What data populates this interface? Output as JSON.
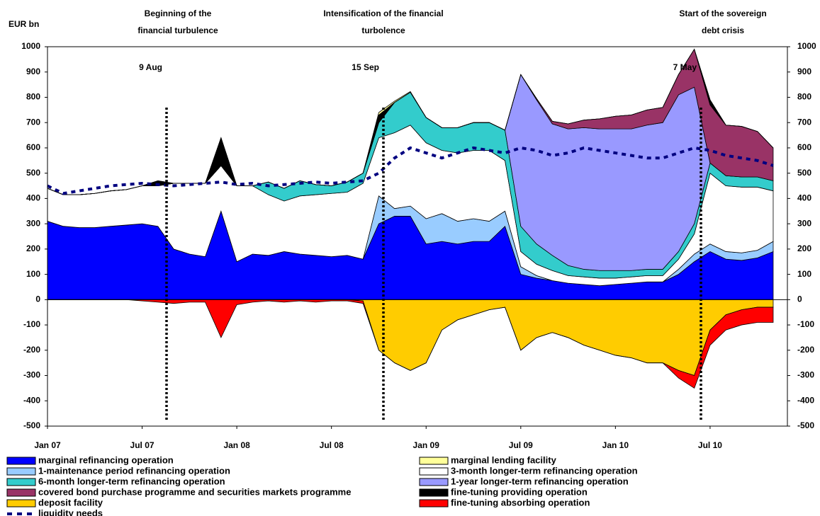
{
  "chart_data": {
    "type": "stacked-area",
    "y_label": "EUR bn",
    "categories": [
      "Jan 07",
      null,
      null,
      null,
      null,
      null,
      "Jul 07",
      null,
      null,
      null,
      null,
      null,
      "Jan 08",
      null,
      null,
      null,
      null,
      null,
      "Jul 08",
      null,
      null,
      null,
      null,
      null,
      "Jan 09",
      null,
      null,
      null,
      null,
      null,
      "Jul 09",
      null,
      null,
      null,
      null,
      null,
      "Jan 10",
      null,
      null,
      null,
      null,
      null,
      "Jul 10",
      null,
      null,
      null,
      null
    ],
    "ylim": [
      -500,
      1000
    ],
    "yticks": [
      -500,
      -400,
      -300,
      -200,
      -100,
      0,
      100,
      200,
      300,
      400,
      500,
      600,
      700,
      800,
      900,
      1000
    ],
    "annotations": [
      {
        "text": [
          "Beginning of the",
          "financial turbulence"
        ],
        "date": "9 Aug"
      },
      {
        "text": [
          "Intensification of the financial",
          "turbolence"
        ],
        "date": "15 Sep"
      },
      {
        "text": [
          "Start of the sovereign",
          "debt crisis"
        ],
        "date": "7 May"
      }
    ],
    "series": [
      {
        "name": "marginal refinancing operation",
        "color": "#0000ff",
        "stack": "pos",
        "values": [
          310,
          290,
          285,
          285,
          290,
          295,
          300,
          290,
          200,
          180,
          170,
          350,
          150,
          180,
          175,
          190,
          180,
          175,
          170,
          175,
          160,
          300,
          330,
          330,
          220,
          230,
          220,
          230,
          230,
          290,
          100,
          85,
          75,
          65,
          60,
          55,
          60,
          65,
          70,
          70,
          100,
          150,
          190,
          160,
          155,
          165,
          190
        ]
      },
      {
        "name": "1-maintenance period refinancing operation",
        "color": "#99ccff",
        "stack": "pos",
        "values": [
          0,
          0,
          0,
          0,
          0,
          0,
          0,
          0,
          0,
          0,
          0,
          0,
          0,
          0,
          0,
          0,
          0,
          0,
          0,
          0,
          0,
          110,
          30,
          40,
          100,
          110,
          90,
          90,
          80,
          60,
          30,
          10,
          0,
          0,
          0,
          0,
          0,
          0,
          0,
          0,
          20,
          30,
          30,
          30,
          30,
          30,
          40
        ]
      },
      {
        "name": "3-month longer-term refinancing operation",
        "color": "#ffffff",
        "stack": "pos",
        "values": [
          130,
          125,
          130,
          135,
          140,
          140,
          150,
          160,
          260,
          280,
          290,
          180,
          300,
          270,
          240,
          200,
          230,
          240,
          250,
          250,
          300,
          230,
          300,
          320,
          300,
          250,
          270,
          270,
          280,
          200,
          60,
          45,
          40,
          30,
          30,
          30,
          25,
          25,
          25,
          25,
          40,
          80,
          280,
          260,
          260,
          250,
          200
        ]
      },
      {
        "name": "6-month longer-term refinancing operation",
        "color": "#33cccc",
        "stack": "pos",
        "values": [
          0,
          0,
          0,
          0,
          0,
          0,
          0,
          0,
          0,
          0,
          0,
          0,
          0,
          0,
          50,
          50,
          60,
          40,
          30,
          40,
          40,
          60,
          120,
          130,
          100,
          90,
          100,
          110,
          110,
          120,
          100,
          80,
          60,
          40,
          30,
          30,
          30,
          25,
          25,
          25,
          30,
          40,
          40,
          40,
          40,
          40,
          40
        ]
      },
      {
        "name": "1-year longer-term refinancing operation",
        "color": "#9999ff",
        "stack": "pos",
        "values": [
          0,
          0,
          0,
          0,
          0,
          0,
          0,
          0,
          0,
          0,
          0,
          0,
          0,
          0,
          0,
          0,
          0,
          0,
          0,
          0,
          0,
          0,
          0,
          0,
          0,
          0,
          0,
          0,
          0,
          0,
          600,
          570,
          520,
          540,
          560,
          560,
          560,
          560,
          570,
          580,
          620,
          540,
          0,
          0,
          0,
          0,
          0
        ]
      },
      {
        "name": "covered bond purchase programme and securities markets programme",
        "color": "#993366",
        "stack": "pos",
        "values": [
          0,
          0,
          0,
          0,
          0,
          0,
          0,
          0,
          0,
          0,
          0,
          0,
          0,
          0,
          0,
          0,
          0,
          0,
          0,
          0,
          0,
          0,
          0,
          0,
          0,
          0,
          0,
          0,
          0,
          0,
          0,
          5,
          10,
          20,
          30,
          40,
          50,
          55,
          60,
          60,
          80,
          150,
          230,
          200,
          200,
          180,
          130
        ]
      },
      {
        "name": "fine-tuning providing operation",
        "color": "#000000",
        "stack": "pos",
        "values": [
          0,
          0,
          0,
          0,
          0,
          0,
          0,
          20,
          0,
          0,
          0,
          110,
          0,
          0,
          0,
          0,
          0,
          0,
          0,
          0,
          0,
          30,
          0,
          0,
          0,
          0,
          0,
          0,
          0,
          0,
          0,
          0,
          0,
          0,
          0,
          0,
          0,
          0,
          0,
          0,
          0,
          0,
          20,
          0,
          0,
          0,
          0
        ]
      },
      {
        "name": "marginal lending facility",
        "color": "#ffff99",
        "stack": "pos",
        "values": [
          0,
          0,
          0,
          0,
          0,
          0,
          0,
          0,
          0,
          0,
          0,
          0,
          0,
          0,
          0,
          0,
          0,
          0,
          0,
          0,
          0,
          10,
          5,
          3,
          0,
          0,
          0,
          0,
          0,
          0,
          0,
          0,
          0,
          0,
          0,
          0,
          0,
          0,
          0,
          0,
          0,
          0,
          0,
          0,
          0,
          0,
          0
        ]
      },
      {
        "name": "deposit facility",
        "color": "#ffcc00",
        "stack": "neg",
        "values": [
          0,
          0,
          0,
          0,
          0,
          0,
          0,
          0,
          0,
          0,
          0,
          0,
          0,
          0,
          0,
          0,
          0,
          0,
          0,
          0,
          -5,
          -200,
          -250,
          -280,
          -250,
          -120,
          -80,
          -60,
          -40,
          -30,
          -200,
          -150,
          -130,
          -150,
          -180,
          -200,
          -220,
          -230,
          -250,
          -250,
          -280,
          -300,
          -120,
          -60,
          -40,
          -30,
          -30
        ]
      },
      {
        "name": "fine-tuning absorbing operation",
        "color": "#ff0000",
        "stack": "neg",
        "values": [
          0,
          0,
          0,
          0,
          0,
          0,
          -5,
          -10,
          -15,
          -10,
          -10,
          -150,
          -20,
          -10,
          -5,
          -10,
          -5,
          -10,
          -5,
          -5,
          -10,
          0,
          0,
          0,
          0,
          0,
          0,
          0,
          0,
          0,
          0,
          0,
          0,
          0,
          0,
          0,
          0,
          0,
          0,
          0,
          -30,
          -50,
          -60,
          -60,
          -60,
          -60,
          -60
        ]
      },
      {
        "name": "liquidity needs",
        "color": "#000080",
        "stack": "line",
        "values": [
          450,
          420,
          430,
          440,
          450,
          455,
          460,
          455,
          450,
          455,
          460,
          465,
          455,
          460,
          450,
          455,
          460,
          465,
          460,
          465,
          470,
          500,
          560,
          600,
          580,
          560,
          580,
          600,
          590,
          580,
          600,
          590,
          570,
          580,
          600,
          590,
          580,
          570,
          560,
          560,
          580,
          600,
          590,
          570,
          560,
          550,
          530
        ]
      }
    ]
  }
}
